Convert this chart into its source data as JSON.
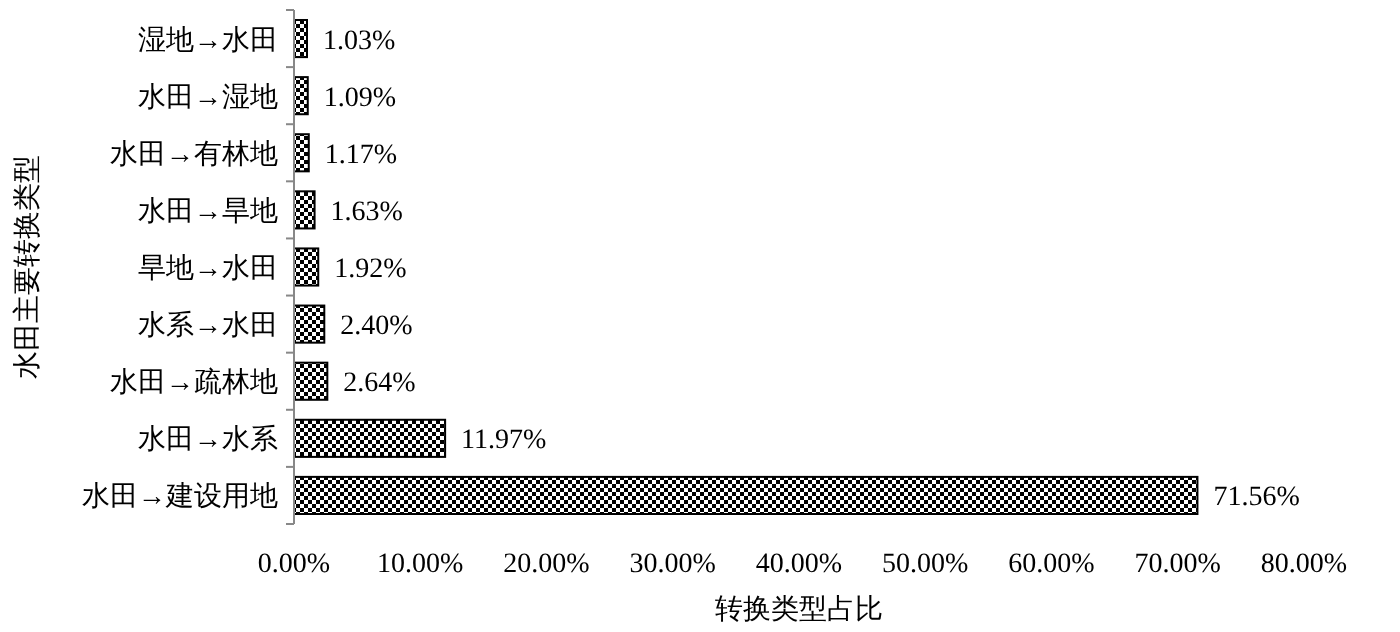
{
  "chart_data": {
    "type": "bar",
    "orientation": "horizontal",
    "xlabel": "转换类型占比",
    "ylabel": "水田主要转换类型",
    "categories": [
      "湿地→水田",
      "水田→湿地",
      "水田→有林地",
      "水田→旱地",
      "旱地→水田",
      "水系→水田",
      "水田→疏林地",
      "水田→水系",
      "水田→建设用地"
    ],
    "values": [
      1.03,
      1.09,
      1.17,
      1.63,
      1.92,
      2.4,
      2.64,
      11.97,
      71.56
    ],
    "value_labels": [
      "1.03%",
      "1.09%",
      "1.17%",
      "1.63%",
      "1.92%",
      "2.40%",
      "2.64%",
      "11.97%",
      "71.56%"
    ],
    "color": "#000000",
    "xlim": [
      0,
      80
    ],
    "xticks": [
      {
        "value": 0,
        "label": "0.00%"
      },
      {
        "value": 10,
        "label": "10.00%"
      },
      {
        "value": 20,
        "label": "20.00%"
      },
      {
        "value": 30,
        "label": "30.00%"
      },
      {
        "value": 40,
        "label": "40.00%"
      },
      {
        "value": 50,
        "label": "50.00%"
      },
      {
        "value": 60,
        "label": "60.00%"
      },
      {
        "value": 70,
        "label": "70.00%"
      },
      {
        "value": 80,
        "label": "80.00%"
      }
    ],
    "grid": false
  }
}
